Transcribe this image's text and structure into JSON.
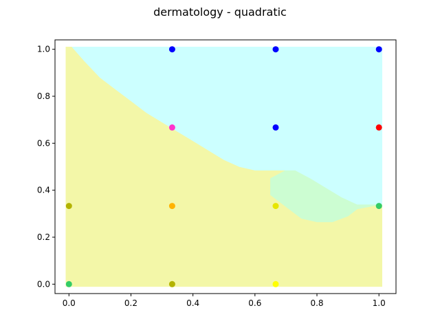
{
  "chart_data": {
    "type": "scatter",
    "title": "dermatology - quadratic",
    "xlabel": "",
    "ylabel": "",
    "xlim": [
      -0.045,
      1.055
    ],
    "ylim": [
      -0.04,
      1.04
    ],
    "xticks": [
      0.0,
      0.2,
      0.4,
      0.6,
      0.8,
      1.0
    ],
    "xtick_labels": [
      "0.0",
      "0.2",
      "0.4",
      "0.6",
      "0.8",
      "1.0"
    ],
    "yticks": [
      0.0,
      0.2,
      0.4,
      0.6,
      0.8,
      1.0
    ],
    "ytick_labels": [
      "0.0",
      "0.2",
      "0.4",
      "0.6",
      "0.8",
      "1.0"
    ],
    "grid": false,
    "decision_regions": [
      {
        "color": "#f3f7a8",
        "polygon": [
          [
            -0.01,
            1.01
          ],
          [
            0.01,
            1.01
          ],
          [
            0.05,
            0.95
          ],
          [
            0.1,
            0.88
          ],
          [
            0.15,
            0.83
          ],
          [
            0.2,
            0.78
          ],
          [
            0.25,
            0.73
          ],
          [
            0.3,
            0.69
          ],
          [
            0.35,
            0.65
          ],
          [
            0.4,
            0.61
          ],
          [
            0.45,
            0.57
          ],
          [
            0.5,
            0.53
          ],
          [
            0.55,
            0.5
          ],
          [
            0.6,
            0.485
          ],
          [
            0.7,
            0.485
          ],
          [
            0.65,
            0.45
          ],
          [
            0.65,
            0.38
          ],
          [
            0.7,
            0.33
          ],
          [
            0.75,
            0.28
          ],
          [
            0.8,
            0.265
          ],
          [
            0.85,
            0.265
          ],
          [
            0.9,
            0.29
          ],
          [
            0.93,
            0.32
          ],
          [
            1.01,
            0.34
          ],
          [
            1.01,
            -0.01
          ],
          [
            -0.01,
            -0.01
          ]
        ]
      },
      {
        "color": "#ccfdd2",
        "polygon": [
          [
            0.6,
            0.485
          ],
          [
            0.73,
            0.485
          ],
          [
            0.78,
            0.45
          ],
          [
            0.83,
            0.41
          ],
          [
            0.88,
            0.37
          ],
          [
            0.93,
            0.34
          ],
          [
            1.01,
            0.34
          ],
          [
            0.93,
            0.32
          ],
          [
            0.9,
            0.29
          ],
          [
            0.85,
            0.265
          ],
          [
            0.8,
            0.265
          ],
          [
            0.75,
            0.28
          ],
          [
            0.7,
            0.33
          ],
          [
            0.65,
            0.38
          ],
          [
            0.65,
            0.45
          ],
          [
            0.7,
            0.485
          ]
        ]
      },
      {
        "color": "#ccffff",
        "polygon": [
          [
            0.01,
            1.01
          ],
          [
            1.01,
            1.01
          ],
          [
            1.01,
            0.34
          ],
          [
            0.93,
            0.34
          ],
          [
            0.88,
            0.37
          ],
          [
            0.83,
            0.41
          ],
          [
            0.78,
            0.45
          ],
          [
            0.73,
            0.485
          ],
          [
            0.6,
            0.485
          ],
          [
            0.55,
            0.5
          ],
          [
            0.5,
            0.53
          ],
          [
            0.45,
            0.57
          ],
          [
            0.4,
            0.61
          ],
          [
            0.35,
            0.65
          ],
          [
            0.3,
            0.69
          ],
          [
            0.25,
            0.73
          ],
          [
            0.2,
            0.78
          ],
          [
            0.15,
            0.83
          ],
          [
            0.1,
            0.88
          ],
          [
            0.05,
            0.95
          ]
        ]
      }
    ],
    "points": [
      {
        "x": 0.333,
        "y": 1.0,
        "color": "#0000ff"
      },
      {
        "x": 0.667,
        "y": 1.0,
        "color": "#0000ff"
      },
      {
        "x": 1.0,
        "y": 1.0,
        "color": "#0000ff"
      },
      {
        "x": 0.333,
        "y": 0.667,
        "color": "#ff33cc"
      },
      {
        "x": 0.667,
        "y": 0.667,
        "color": "#0000ff"
      },
      {
        "x": 1.0,
        "y": 0.667,
        "color": "#ff0000"
      },
      {
        "x": 0.0,
        "y": 0.333,
        "color": "#b3b300"
      },
      {
        "x": 0.333,
        "y": 0.333,
        "color": "#ffb300"
      },
      {
        "x": 0.667,
        "y": 0.333,
        "color": "#e6e600"
      },
      {
        "x": 1.0,
        "y": 0.333,
        "color": "#33cc66"
      },
      {
        "x": 0.0,
        "y": 0.0,
        "color": "#33cc66"
      },
      {
        "x": 0.333,
        "y": 0.0,
        "color": "#b3b300"
      },
      {
        "x": 0.667,
        "y": 0.0,
        "color": "#ffff00"
      }
    ]
  }
}
